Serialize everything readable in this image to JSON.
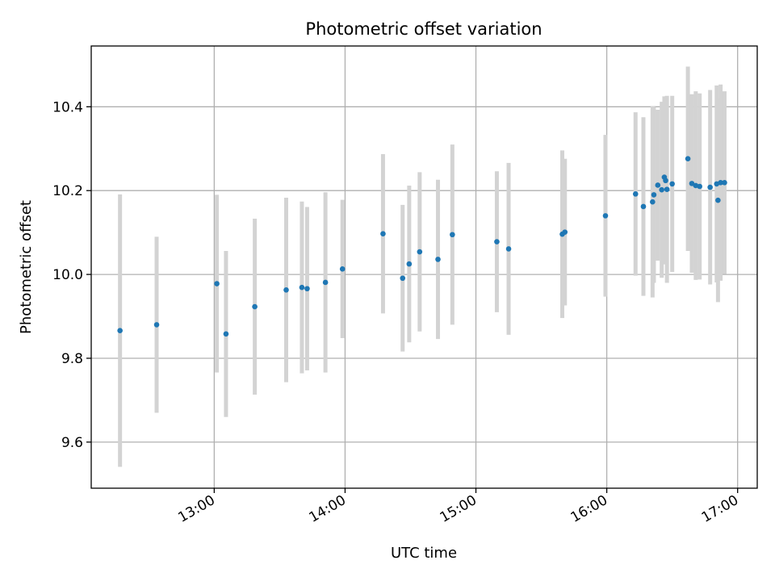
{
  "chart_data": {
    "type": "scatter",
    "title": "Photometric offset variation",
    "xlabel": "UTC time",
    "ylabel": "Photometric offset",
    "x_unit": "hours UTC",
    "xlim": [
      12.06,
      17.15
    ],
    "ylim": [
      9.49,
      10.545
    ],
    "grid": true,
    "legend": "none",
    "xticks": [
      {
        "value": 13,
        "label": "13:00"
      },
      {
        "value": 14,
        "label": "14:00"
      },
      {
        "value": 15,
        "label": "15:00"
      },
      {
        "value": 16,
        "label": "16:00"
      },
      {
        "value": 17,
        "label": "17:00"
      }
    ],
    "yticks": [
      {
        "value": 9.6,
        "label": "9.6"
      },
      {
        "value": 9.8,
        "label": "9.8"
      },
      {
        "value": 10.0,
        "label": "10.0"
      },
      {
        "value": 10.2,
        "label": "10.2"
      },
      {
        "value": 10.4,
        "label": "10.4"
      }
    ],
    "colors": {
      "point": "#1f77b4",
      "errorbar": "#d3d3d3",
      "grid": "#b0b0b0",
      "axis": "#000000"
    },
    "series": [
      {
        "name": "offset",
        "points": [
          {
            "x": 12.28,
            "y": 9.866,
            "err": 0.325
          },
          {
            "x": 12.56,
            "y": 9.88,
            "err": 0.21
          },
          {
            "x": 13.02,
            "y": 9.978,
            "err": 0.212
          },
          {
            "x": 13.09,
            "y": 9.858,
            "err": 0.198
          },
          {
            "x": 13.31,
            "y": 9.923,
            "err": 0.21
          },
          {
            "x": 13.55,
            "y": 9.963,
            "err": 0.22
          },
          {
            "x": 13.67,
            "y": 9.969,
            "err": 0.205
          },
          {
            "x": 13.71,
            "y": 9.966,
            "err": 0.195
          },
          {
            "x": 13.85,
            "y": 9.981,
            "err": 0.215
          },
          {
            "x": 13.98,
            "y": 10.013,
            "err": 0.165
          },
          {
            "x": 14.29,
            "y": 10.097,
            "err": 0.19
          },
          {
            "x": 14.44,
            "y": 9.991,
            "err": 0.175
          },
          {
            "x": 14.49,
            "y": 10.025,
            "err": 0.187
          },
          {
            "x": 14.57,
            "y": 10.054,
            "err": 0.19
          },
          {
            "x": 14.71,
            "y": 10.036,
            "err": 0.19
          },
          {
            "x": 14.82,
            "y": 10.095,
            "err": 0.215
          },
          {
            "x": 15.16,
            "y": 10.078,
            "err": 0.168
          },
          {
            "x": 15.25,
            "y": 10.061,
            "err": 0.205
          },
          {
            "x": 15.66,
            "y": 10.096,
            "err": 0.2
          },
          {
            "x": 15.68,
            "y": 10.101,
            "err": 0.175
          },
          {
            "x": 15.99,
            "y": 10.14,
            "err": 0.193
          },
          {
            "x": 16.22,
            "y": 10.192,
            "err": 0.195
          },
          {
            "x": 16.28,
            "y": 10.162,
            "err": 0.213
          },
          {
            "x": 16.35,
            "y": 10.173,
            "err": 0.228
          },
          {
            "x": 16.36,
            "y": 10.19,
            "err": 0.21
          },
          {
            "x": 16.39,
            "y": 10.213,
            "err": 0.18
          },
          {
            "x": 16.42,
            "y": 10.202,
            "err": 0.21
          },
          {
            "x": 16.44,
            "y": 10.232,
            "err": 0.193
          },
          {
            "x": 16.45,
            "y": 10.224,
            "err": 0.2
          },
          {
            "x": 16.46,
            "y": 10.203,
            "err": 0.223
          },
          {
            "x": 16.5,
            "y": 10.216,
            "err": 0.21
          },
          {
            "x": 16.62,
            "y": 10.276,
            "err": 0.22
          },
          {
            "x": 16.65,
            "y": 10.217,
            "err": 0.213
          },
          {
            "x": 16.68,
            "y": 10.212,
            "err": 0.225
          },
          {
            "x": 16.71,
            "y": 10.21,
            "err": 0.222
          },
          {
            "x": 16.79,
            "y": 10.208,
            "err": 0.232
          },
          {
            "x": 16.84,
            "y": 10.216,
            "err": 0.235
          },
          {
            "x": 16.85,
            "y": 10.177,
            "err": 0.243
          },
          {
            "x": 16.87,
            "y": 10.219,
            "err": 0.234
          },
          {
            "x": 16.9,
            "y": 10.219,
            "err": 0.218
          }
        ]
      }
    ]
  }
}
